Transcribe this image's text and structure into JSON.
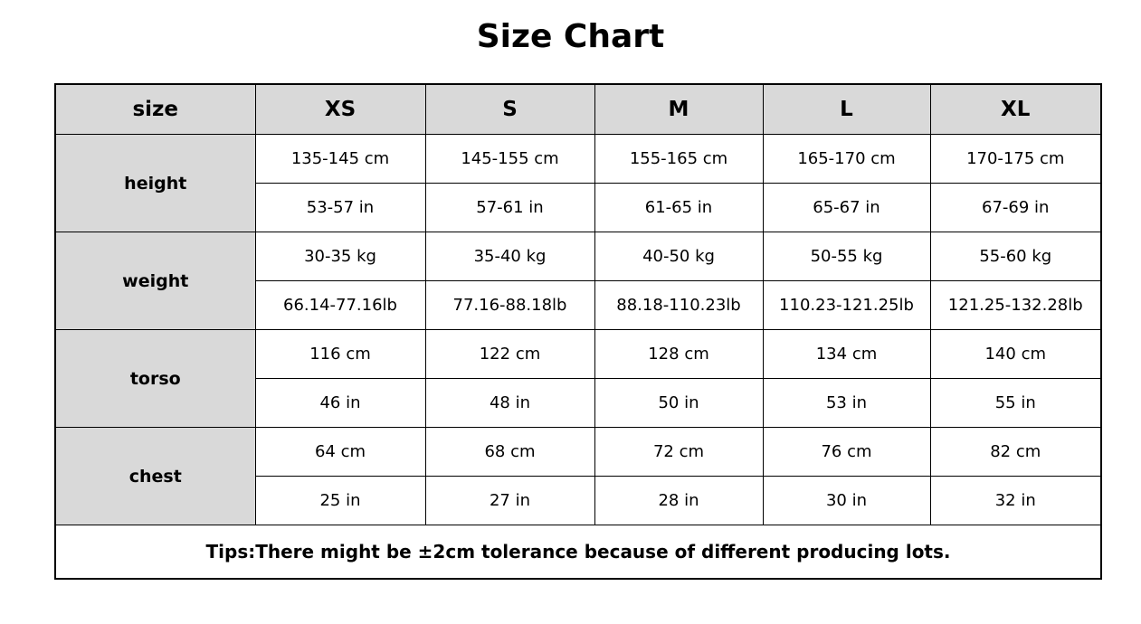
{
  "title": "Size Chart",
  "table": {
    "header": [
      "size",
      "XS",
      "S",
      "M",
      "L",
      "XL"
    ],
    "groups": [
      {
        "label": "height",
        "rows": [
          [
            "135-145 cm",
            "145-155 cm",
            "155-165 cm",
            "165-170 cm",
            "170-175 cm"
          ],
          [
            "53-57 in",
            "57-61 in",
            "61-65 in",
            "65-67 in",
            "67-69 in"
          ]
        ]
      },
      {
        "label": "weight",
        "rows": [
          [
            "30-35 kg",
            "35-40 kg",
            "40-50 kg",
            "50-55 kg",
            "55-60 kg"
          ],
          [
            "66.14-77.16lb",
            "77.16-88.18lb",
            "88.18-110.23lb",
            "110.23-121.25lb",
            "121.25-132.28lb"
          ]
        ]
      },
      {
        "label": "torso",
        "rows": [
          [
            "116 cm",
            "122 cm",
            "128 cm",
            "134 cm",
            "140 cm"
          ],
          [
            "46 in",
            "48 in",
            "50 in",
            "53 in",
            "55 in"
          ]
        ]
      },
      {
        "label": "chest",
        "rows": [
          [
            "64 cm",
            "68 cm",
            "72 cm",
            "76 cm",
            "82 cm"
          ],
          [
            "25 in",
            "27 in",
            "28 in",
            "30 in",
            "32 in"
          ]
        ]
      }
    ],
    "tips": "Tips:There might be ±2cm tolerance because of different producing lots."
  }
}
